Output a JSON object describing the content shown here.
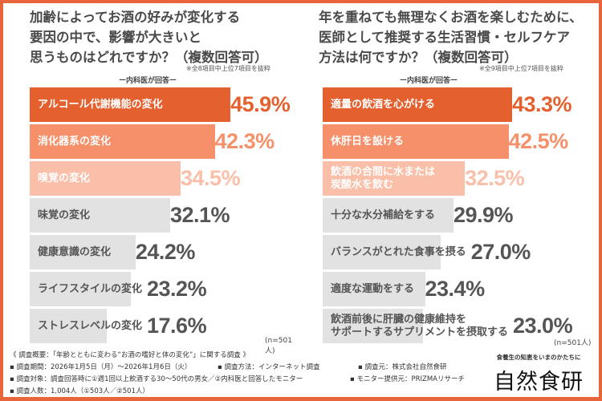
{
  "chart_data": [
    {
      "type": "bar",
      "orientation": "horizontal",
      "title": "加齢によってお酒の好みが変化する\n要因の中で、影響が大きいと\n思うものはどれですか？（複数回答可）",
      "note": "※全8項目中上位7項目を抜粋",
      "respondent": "ー内科医が回答ー",
      "sample": "(n=501人)",
      "categories": [
        "アルコール代謝機能の変化",
        "消化器系の変化",
        "嗅覚の変化",
        "味覚の変化",
        "健康意識の変化",
        "ライフスタイルの変化",
        "ストレスレベルの変化"
      ],
      "values": [
        45.9,
        42.3,
        34.5,
        32.1,
        24.2,
        23.2,
        17.6
      ],
      "labels": [
        "45.9%",
        "42.3%",
        "34.5%",
        "32.1%",
        "24.2%",
        "23.2%",
        "17.6%"
      ],
      "unit": "%"
    },
    {
      "type": "bar",
      "orientation": "horizontal",
      "title": "年を重ねても無理なくお酒を楽しむために、\n医師として推奨する生活習慣・セルフケア\n方法は何ですか？（複数回答可）",
      "note": "※全9項目中上位7項目を抜粋",
      "respondent": "ー内科医が回答ー",
      "sample": "(n=501人)",
      "categories": [
        "適量の飲酒を心がける",
        "休肝日を設ける",
        "飲酒の合間に水または\n炭酸水を飲む",
        "十分な水分補給をする",
        "バランスがとれた食事を摂る",
        "適度な運動をする",
        "飲酒前後に肝臓の健康維持を\nサポートするサプリメントを摂取する"
      ],
      "values": [
        43.3,
        42.5,
        32.5,
        29.9,
        27.0,
        23.4,
        23.0
      ],
      "labels": [
        "43.3%",
        "42.5%",
        "32.5%",
        "29.9%",
        "27.0%",
        "23.4%",
        "23.0%"
      ],
      "unit": "%"
    }
  ],
  "colors": {
    "rank1": "#e4612f",
    "rank2": "#f5906a",
    "rank3": "#f9bfa8",
    "other": "#e2e2e2",
    "frame": "#e8643a",
    "text_light": "#ffffff",
    "text_dark": "#555555"
  },
  "footer": {
    "overview": "《 調査概要：「年齢とともに変わる“お酒の嗜好と体の変化”」に関する調査 》",
    "period": "▪ 調査期間：2026年1月5日（月）～2026年1月6日（火）",
    "method": "▪ 調査方法：インターネット調査",
    "organizer": "▪ 調査元：株式会社自然食研",
    "target": "▪ 調査対象：調査回答時に①週1回以上飲酒する30～50代の男女／②内科医と回答したモニター",
    "provider": "▪ モニター提供元：PRIZMAリサーチ",
    "count": "▪ 調査人数：1,004人（①503人／②501人）"
  },
  "logo": {
    "tagline": "食養生の知恵をいまのかたちに",
    "name": "自然食研"
  }
}
